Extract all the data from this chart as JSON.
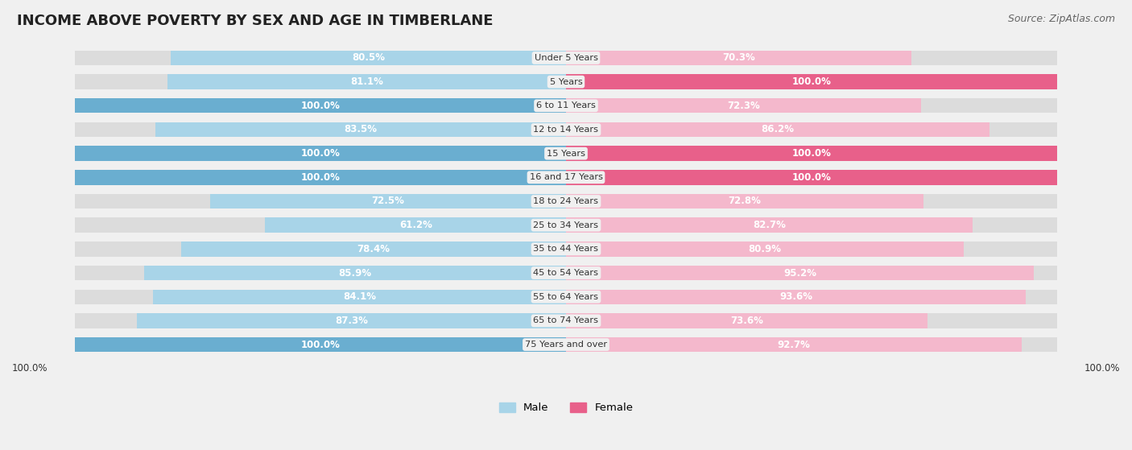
{
  "title": "INCOME ABOVE POVERTY BY SEX AND AGE IN TIMBERLANE",
  "source": "Source: ZipAtlas.com",
  "categories": [
    "Under 5 Years",
    "5 Years",
    "6 to 11 Years",
    "12 to 14 Years",
    "15 Years",
    "16 and 17 Years",
    "18 to 24 Years",
    "25 to 34 Years",
    "35 to 44 Years",
    "45 to 54 Years",
    "55 to 64 Years",
    "65 to 74 Years",
    "75 Years and over"
  ],
  "male_values": [
    80.5,
    81.1,
    100.0,
    83.5,
    100.0,
    100.0,
    72.5,
    61.2,
    78.4,
    85.9,
    84.1,
    87.3,
    100.0
  ],
  "female_values": [
    70.3,
    100.0,
    72.3,
    86.2,
    100.0,
    100.0,
    72.8,
    82.7,
    80.9,
    95.2,
    93.6,
    73.6,
    92.7
  ],
  "male_color_light": "#a8d4e8",
  "male_color_dark": "#6aaed0",
  "female_color_light": "#f4b8cc",
  "female_color_dark": "#e8608a",
  "bg_color": "#f0f0f0",
  "bar_bg_color": "#dcdcdc",
  "label_bottom_left": "100.0%",
  "label_bottom_right": "100.0%",
  "title_fontsize": 13,
  "source_fontsize": 9,
  "bar_label_fontsize": 8.5
}
